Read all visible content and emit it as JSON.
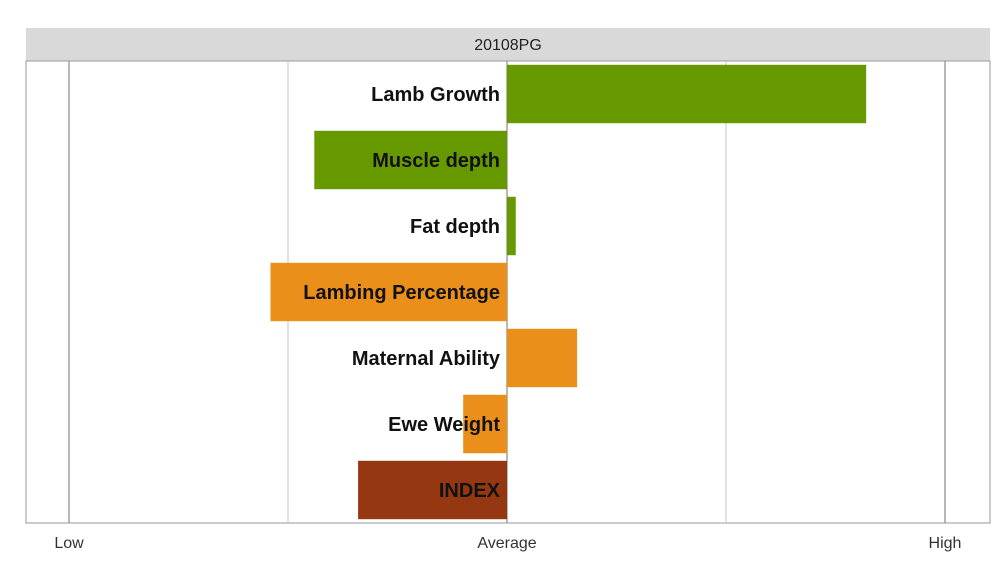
{
  "chart_data": {
    "type": "bar",
    "orientation": "horizontal",
    "title": "20108PG",
    "categories": [
      "Lamb Growth",
      "Muscle depth",
      "Fat depth",
      "Lambing Percentage",
      "Maternal Ability",
      "Ewe Weight",
      "INDEX"
    ],
    "values": [
      0.82,
      -0.44,
      0.02,
      -0.54,
      0.16,
      -0.1,
      -0.34
    ],
    "bar_colors": [
      "#669900",
      "#669900",
      "#669900",
      "#ea8f1a",
      "#ea8f1a",
      "#ea8f1a",
      "#953812"
    ],
    "xlim": [
      -1,
      1
    ],
    "x_ticks": [
      {
        "value": -1,
        "label": "Low"
      },
      {
        "value": 0,
        "label": "Average"
      },
      {
        "value": 1,
        "label": "High"
      }
    ],
    "grid_lines": [
      -1,
      -0.5,
      0,
      0.5,
      1
    ],
    "xlabel": "",
    "ylabel": "",
    "grid": true,
    "legend": "none"
  }
}
